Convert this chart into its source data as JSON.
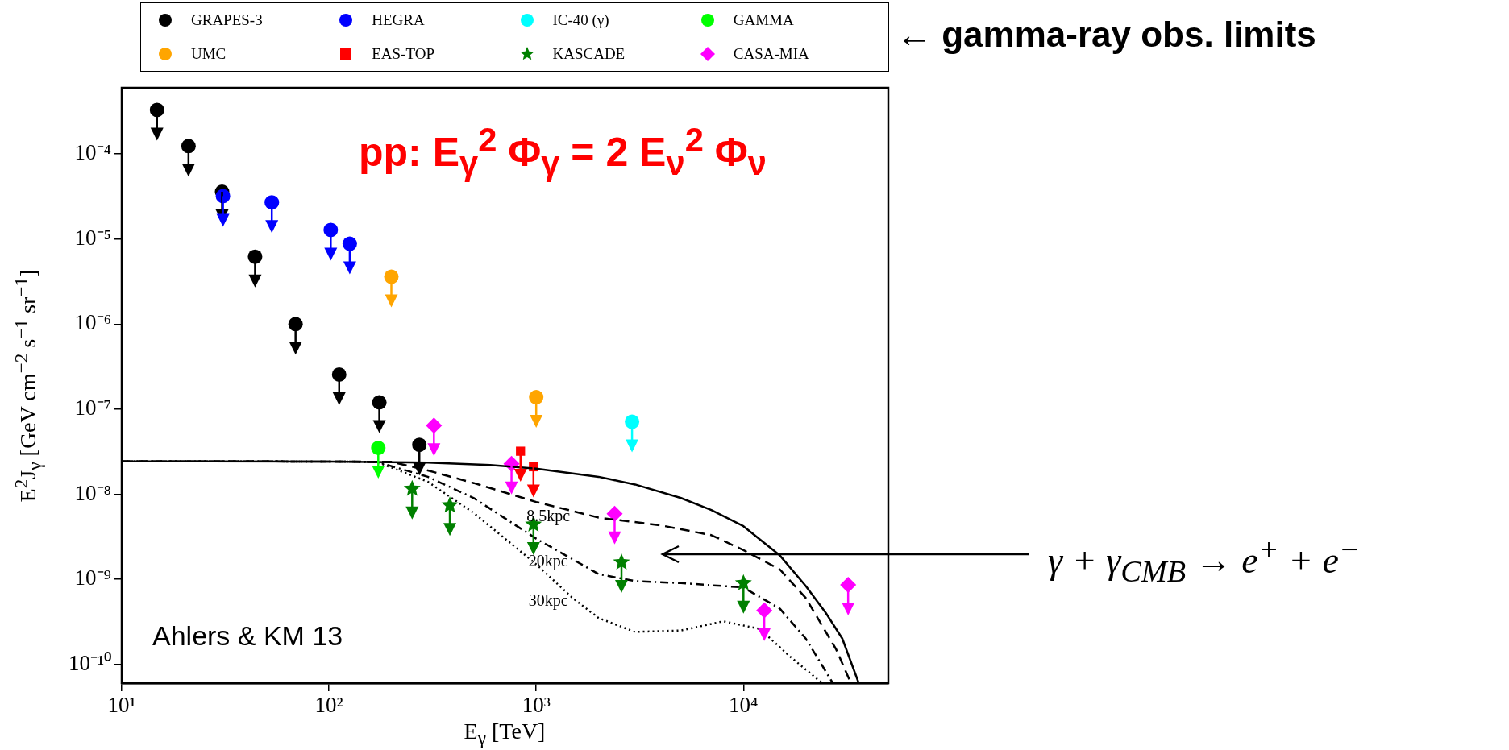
{
  "chart_data": {
    "type": "scatter",
    "xlabel": "E$_{γ}$ [TeV]",
    "ylabel": "E$^{2}$J$_{γ}$ [GeV cm$^{−2}$ s$^{−1}$ sr$^{−1}$]",
    "log": "xy",
    "grid": false,
    "legend": "top",
    "xlim": [
      10,
      50000
    ],
    "ylim": [
      6e-11,
      0.0006
    ],
    "xticks": [
      {
        "value": 10,
        "label": "10¹"
      },
      {
        "value": 100,
        "label": "10²"
      },
      {
        "value": 1000,
        "label": "10³"
      },
      {
        "value": 10000,
        "label": "10⁴"
      }
    ],
    "yticks": [
      {
        "value": 1e-10,
        "label": "10⁻¹⁰"
      },
      {
        "value": 1e-09,
        "label": "10⁻⁹"
      },
      {
        "value": 1e-08,
        "label": "10⁻⁸"
      },
      {
        "value": 1e-07,
        "label": "10⁻⁷"
      },
      {
        "value": 1e-06,
        "label": "10⁻⁶"
      },
      {
        "value": 1e-05,
        "label": "10⁻⁵"
      },
      {
        "value": 0.0001,
        "label": "10⁻⁴"
      }
    ],
    "annotations": [
      "pp: E$_{γ}$$^{2}$ Φ$_{γ}$ = 2 E$_{ν}$$^{2}$ Φ$_{ν}$",
      "Ahlers & KM 13",
      "← gamma-ray obs. limits",
      "γ + γ$_{CMB}$ → e$^{+}$ + e$^{−}$"
    ],
    "series": [
      {
        "name": "GRAPES-3",
        "color": "#000000",
        "marker": "circle",
        "x": [
          14.8,
          21,
          30.5,
          44,
          69,
          112,
          175,
          273
        ],
        "values": [
          0.00033,
          0.000124,
          3.6e-05,
          6.2e-06,
          1e-06,
          2.55e-07,
          1.2e-07,
          3.8e-08
        ]
      },
      {
        "name": "HEGRA",
        "color": "#0000ff",
        "x": [
          30.8,
          53,
          102,
          126
        ],
        "values": [
          3.2e-05,
          2.7e-05,
          1.28e-05,
          8.8e-06
        ]
      },
      {
        "name": "IC-40 (γ)",
        "color": "#00ffff",
        "x": [
          2900
        ],
        "values": [
          7.1e-08
        ]
      },
      {
        "name": "GAMMA",
        "color": "#00ff00",
        "marker": "circle",
        "x": [
          173
        ],
        "values": [
          3.5e-08
        ]
      },
      {
        "name": "UMC",
        "color": "#ffa500",
        "x": [
          200,
          1000
        ],
        "values": [
          3.6e-06,
          1.38e-07
        ]
      },
      {
        "name": "EAS-TOP",
        "color": "#ff0000",
        "marker": "square",
        "x": [
          840,
          970
        ],
        "values": [
          3.2e-08,
          2.1e-08
        ]
      },
      {
        "name": "KASCADE",
        "color": "#008000",
        "marker": "star",
        "x": [
          252,
          383,
          970,
          2580,
          10000
        ],
        "values": [
          1.16e-08,
          7.4e-09,
          4.4e-09,
          1.58e-09,
          9e-10
        ]
      },
      {
        "name": "CASA-MIA",
        "color": "#ff00ff",
        "marker": "diamond",
        "x": [
          321,
          760,
          2390,
          12600,
          32000
        ],
        "values": [
          6.4e-08,
          2.28e-08,
          5.9e-09,
          4.3e-10,
          8.6e-10
        ]
      },
      {
        "type": "line",
        "color": "#000000",
        "marker": "none",
        "line_style": "solid",
        "x": [
          10,
          100,
          300,
          600,
          1000,
          2000,
          3000,
          5000,
          7000,
          10000,
          15000,
          20000,
          25000,
          30000,
          36000
        ],
        "values": [
          2.43e-08,
          2.42e-08,
          2.35e-08,
          2.2e-08,
          2e-08,
          1.6e-08,
          1.3e-08,
          9e-09,
          6.5e-09,
          4.2e-09,
          1.9e-09,
          8.3e-10,
          4e-10,
          2e-10,
          6e-11
        ]
      },
      {
        "type": "line",
        "name": "8.5kpc",
        "color": "#000000",
        "marker": "none",
        "line_style": "dashed",
        "x": [
          10,
          100,
          200,
          300,
          500,
          1000,
          2000,
          4000,
          7000,
          10000,
          15000,
          20000,
          28000,
          33000
        ],
        "values": [
          2.43e-08,
          2.42e-08,
          2.4e-08,
          1.9e-08,
          1.35e-08,
          8.1e-09,
          5.3e-09,
          4.3e-09,
          3.3e-09,
          2.2e-09,
          1.3e-09,
          6e-10,
          1.5e-10,
          6e-11
        ]
      },
      {
        "type": "line",
        "name": "20kpc",
        "color": "#000000",
        "marker": "none",
        "line_style": "dashdot",
        "x": [
          10,
          100,
          170,
          300,
          500,
          1000,
          2000,
          3000,
          5000,
          10000,
          15000,
          20000,
          27000
        ],
        "values": [
          2.43e-08,
          2.42e-08,
          2.4e-08,
          1.6e-08,
          9e-09,
          3e-09,
          1.15e-09,
          9.5e-10,
          9e-10,
          8e-10,
          4.5e-10,
          2e-10,
          6e-11
        ]
      },
      {
        "type": "line",
        "name": "30kpc",
        "color": "#000000",
        "marker": "none",
        "line_style": "dotted",
        "x": [
          10,
          100,
          170,
          300,
          500,
          1000,
          1500,
          2000,
          3000,
          5000,
          8000,
          12000,
          17000,
          24000
        ],
        "values": [
          2.43e-08,
          2.42e-08,
          2.4e-08,
          1.4e-08,
          6e-09,
          1.5e-09,
          6e-10,
          3.5e-10,
          2.4e-10,
          2.5e-10,
          3.2e-10,
          2.6e-10,
          1.2e-10,
          6e-11
        ]
      }
    ]
  }
}
